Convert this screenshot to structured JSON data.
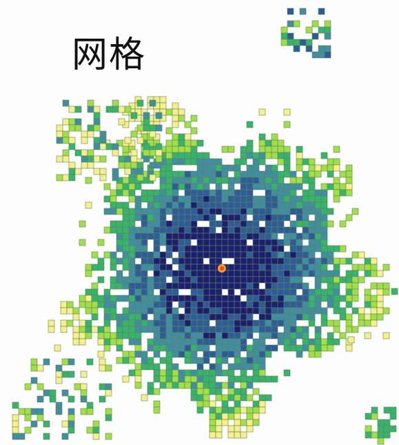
{
  "title": "网格",
  "legend_colors": {
    "very_low": "#f2f08f",
    "low": "#9fdf4a",
    "medium": "#35b36f",
    "high": "#3f8fa4",
    "very_high": "#2b5d9a",
    "highest": "#1a1f72"
  },
  "marker": {
    "name": "center-point",
    "fill": "#ff3b1f",
    "ring": "#f2a51a"
  }
}
